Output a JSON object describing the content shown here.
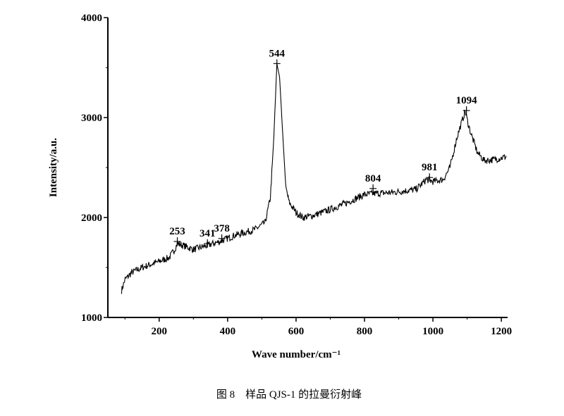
{
  "chart_data": {
    "type": "line",
    "xlabel": "Wave number/cm⁻¹",
    "ylabel": "Intensity/a.u.",
    "caption": "图 8　样品 QJS-1 的拉曼衍射峰",
    "xlim": [
      50,
      1210
    ],
    "ylim": [
      1000,
      4000
    ],
    "x_ticks": [
      200,
      400,
      600,
      800,
      1000,
      1200
    ],
    "y_ticks": [
      1000,
      2000,
      3000,
      4000
    ],
    "grid": false,
    "series": [
      {
        "x": [
          90,
          100,
          120,
          150,
          200,
          230,
          245,
          253,
          270,
          300,
          340,
          378,
          420,
          480,
          510,
          525,
          535,
          544,
          552,
          560,
          570,
          580,
          600,
          620,
          650,
          700,
          750,
          800,
          830,
          880,
          950,
          981,
          1000,
          1030,
          1050,
          1070,
          1094,
          1110,
          1130,
          1150,
          1180,
          1215
        ],
        "y": [
          1270,
          1380,
          1450,
          1500,
          1560,
          1600,
          1680,
          1740,
          1720,
          1680,
          1720,
          1760,
          1820,
          1880,
          1950,
          2200,
          2800,
          3540,
          3400,
          2900,
          2300,
          2150,
          2050,
          2000,
          2020,
          2080,
          2150,
          2230,
          2240,
          2250,
          2280,
          2380,
          2360,
          2380,
          2500,
          2800,
          3060,
          2850,
          2650,
          2570,
          2580,
          2610
        ]
      }
    ],
    "peaks": [
      {
        "label": "253",
        "x": 253,
        "y": 1760
      },
      {
        "label": "341",
        "x": 341,
        "y": 1740
      },
      {
        "label": "378",
        "x": 383,
        "y": 1790
      },
      {
        "label": "544",
        "x": 544,
        "y": 3540
      },
      {
        "label": "804",
        "x": 825,
        "y": 2290
      },
      {
        "label": "981",
        "x": 990,
        "y": 2400
      },
      {
        "label": "1094",
        "x": 1098,
        "y": 3070
      }
    ]
  }
}
